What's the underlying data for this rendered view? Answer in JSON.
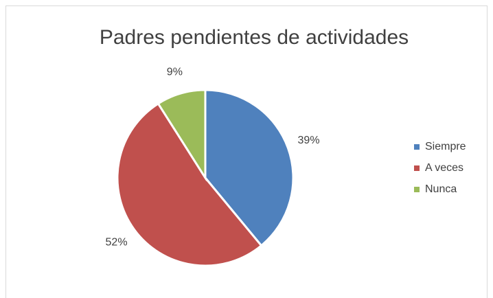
{
  "chart_data": {
    "type": "pie",
    "title": "Padres pendientes de actividades",
    "categories": [
      "Siempre",
      "A veces",
      "Nunca"
    ],
    "values": [
      39,
      52,
      9
    ],
    "value_labels": [
      "39%",
      "52%",
      "9%"
    ],
    "colors": [
      "#4f81bd",
      "#c0504d",
      "#9bbb59"
    ],
    "legend": "right"
  }
}
